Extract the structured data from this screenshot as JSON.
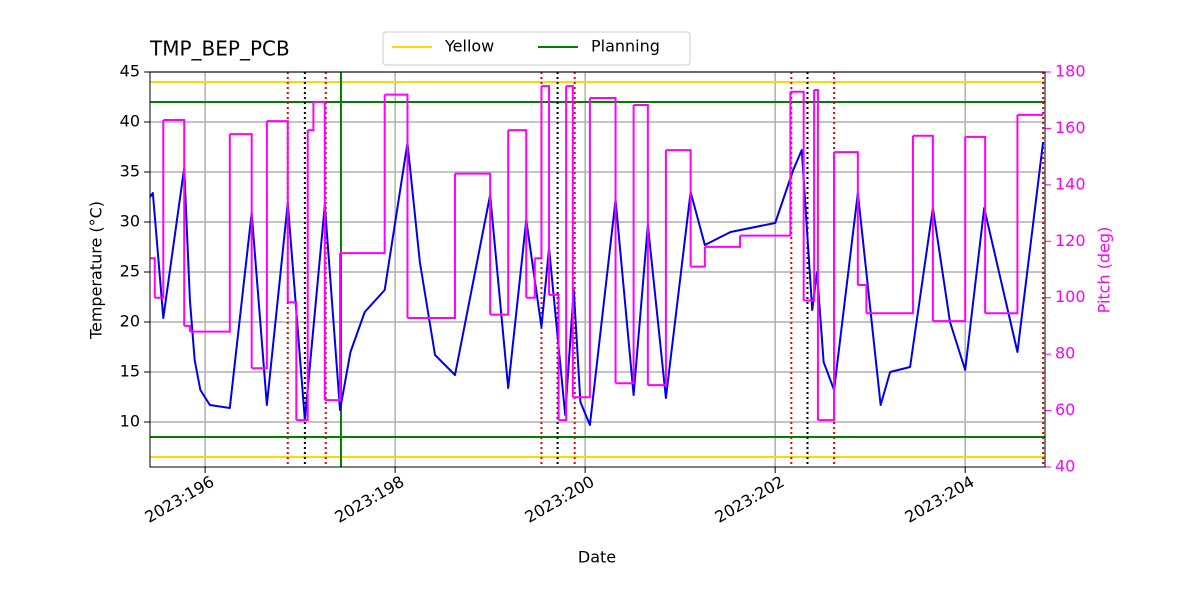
{
  "chart_data": {
    "type": "line",
    "title": "TMP_BEP_PCB",
    "xlabel": "Date",
    "ylabel": "Temperature (°C)",
    "y2label": "Pitch (deg)",
    "y2color": "#ff00ff",
    "grid": true,
    "legend": "upper center",
    "xlim": [
      195.42,
      204.84
    ],
    "xticks": [
      {
        "value": 196,
        "label": "2023:196"
      },
      {
        "value": 198,
        "label": "2023:198"
      },
      {
        "value": 200,
        "label": "2023:200"
      },
      {
        "value": 202,
        "label": "2023:202"
      },
      {
        "value": 204,
        "label": "2023:204"
      }
    ],
    "ylim": [
      5.5,
      45
    ],
    "yticks": [
      10,
      15,
      20,
      25,
      30,
      35,
      40,
      45
    ],
    "y2lim": [
      40,
      180
    ],
    "y2ticks": [
      40,
      60,
      80,
      100,
      120,
      140,
      160,
      180
    ],
    "series": [
      {
        "color": "#0000ee",
        "x": [
          195.42,
          195.45,
          195.56,
          195.78,
          195.84,
          195.89,
          195.95,
          196.05,
          196.26,
          196.49,
          196.65,
          196.87,
          197.05,
          197.26,
          197.42,
          197.53,
          197.68,
          197.89,
          198.13,
          198.26,
          198.42,
          198.63,
          199.0,
          199.19,
          199.38,
          199.54,
          199.62,
          199.79,
          199.88,
          199.95,
          200.05,
          200.32,
          200.51,
          200.66,
          200.85,
          201.11,
          201.26,
          201.53,
          202.0,
          202.19,
          202.28,
          202.39,
          202.44,
          202.51,
          202.62,
          202.87,
          203.11,
          203.21,
          203.42,
          203.66,
          203.84,
          204.0,
          204.2,
          204.55,
          204.82
        ],
        "values": [
          32.5,
          32.9,
          20.4,
          35.4,
          22.2,
          16.2,
          13.2,
          11.7,
          11.4,
          30.9,
          11.7,
          31.9,
          10.2,
          31.7,
          11.2,
          17,
          21,
          23.2,
          37.9,
          26,
          16.7,
          14.7,
          32.7,
          13.4,
          30.2,
          19.5,
          27.4,
          10.7,
          23.2,
          12,
          9.7,
          32.2,
          12.7,
          29.7,
          12.4,
          33.0,
          27.7,
          29,
          29.9,
          35.2,
          37.2,
          21.2,
          25.0,
          16,
          13.2,
          32.9,
          11.7,
          15,
          15.5,
          31.4,
          20,
          15.2,
          31.4,
          17.0,
          38.0
        ]
      },
      {
        "color": "#ff00ff",
        "axis": "y2",
        "step": "post",
        "x": [
          195.42,
          195.47,
          195.56,
          195.78,
          195.84,
          196.26,
          196.49,
          196.65,
          196.87,
          196.96,
          197.08,
          197.14,
          197.26,
          197.42,
          197.89,
          198.13,
          198.63,
          199.0,
          199.19,
          199.38,
          199.47,
          199.54,
          199.62,
          199.72,
          199.8,
          199.87,
          200.05,
          200.32,
          200.51,
          200.66,
          200.85,
          201.11,
          201.26,
          201.63,
          202.16,
          202.3,
          202.41,
          202.45,
          202.62,
          202.87,
          202.96,
          203.45,
          203.66,
          204.0,
          204.21,
          204.55,
          204.82
        ],
        "values": [
          114,
          100,
          163,
          90,
          88,
          158,
          75,
          162.6,
          98.4,
          56.6,
          159.4,
          169.4,
          63.7,
          115.8,
          172,
          92.8,
          144,
          94,
          159.4,
          100,
          114,
          175,
          101,
          56.6,
          175,
          64.7,
          170.8,
          69.7,
          168.3,
          69,
          152.3,
          111,
          118,
          122,
          173,
          99,
          173.6,
          56.6,
          151.6,
          104.5,
          94.5,
          157.4,
          91.7,
          157,
          94.5,
          164.8,
          164.8
        ]
      }
    ],
    "hlines": [
      {
        "name": "Yellow",
        "color": "#ffd700",
        "values": [
          44,
          6.5
        ]
      },
      {
        "name": "Planning",
        "color": "#008000",
        "values": [
          42,
          8.5
        ]
      }
    ],
    "vlines": [
      {
        "color": "#ee0000",
        "style": "dotted",
        "values": [
          196.87,
          197.27,
          199.54,
          199.89,
          202.17,
          202.62,
          204.82
        ]
      },
      {
        "color": "#000000",
        "style": "dotted",
        "values": [
          197.05,
          199.71,
          202.34
        ]
      },
      {
        "color": "#008000",
        "style": "solid",
        "values": [
          197.43
        ]
      }
    ]
  }
}
